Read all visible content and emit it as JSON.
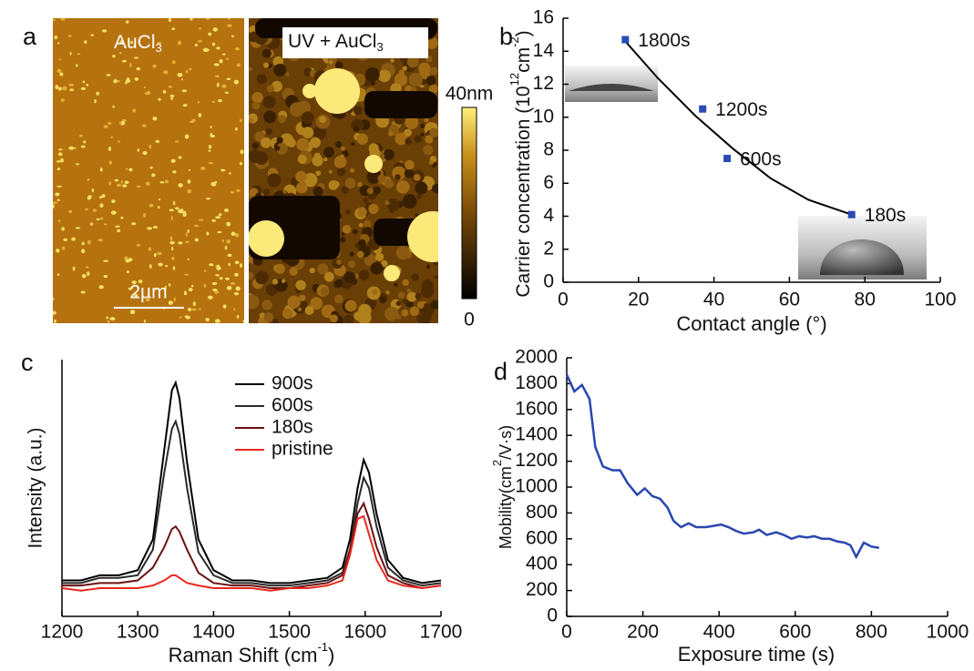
{
  "images": {
    "label": "a",
    "left_title": [
      "AuCl",
      "3"
    ],
    "right_title": [
      "UV + AuCl",
      "3"
    ],
    "scale_bar": "2µm",
    "colorbar": {
      "max_label": "40nm",
      "min_label": "0"
    }
  },
  "chart_data": [
    {
      "type": "scatter",
      "label": "b",
      "x": [
        16.5,
        37,
        43.5,
        76.5
      ],
      "values": [
        14.7,
        10.5,
        7.5,
        4.1
      ],
      "point_labels": [
        "1800s",
        "1200s",
        "600s",
        "180s"
      ],
      "color": "#2a4bb5",
      "fit": {
        "x": [
          16.5,
          25,
          35,
          45,
          55,
          65,
          76.5
        ],
        "values": [
          14.6,
          12.4,
          10.1,
          8.1,
          6.3,
          5.0,
          4.1
        ],
        "color": "#000000"
      },
      "xlim": [
        0,
        100
      ],
      "xticks": [
        0,
        20,
        40,
        60,
        80,
        100
      ],
      "ylim": [
        0,
        16
      ],
      "yticks": [
        0,
        2,
        4,
        6,
        8,
        10,
        12,
        14,
        16
      ],
      "xlabel": "Contact angle (°)",
      "ylabel": [
        "Carrier concentration (10",
        "12",
        "cm",
        "-2",
        ")"
      ]
    },
    {
      "type": "line",
      "label": "c",
      "x": [
        1200,
        1225,
        1250,
        1275,
        1300,
        1320,
        1335,
        1345,
        1350,
        1355,
        1365,
        1380,
        1400,
        1425,
        1450,
        1475,
        1500,
        1525,
        1550,
        1570,
        1580,
        1590,
        1598,
        1605,
        1615,
        1630,
        1650,
        1675,
        1700
      ],
      "series": [
        {
          "name": "900s",
          "color": "#000000",
          "values": [
            14,
            14,
            16,
            16,
            18,
            30,
            65,
            88,
            91,
            85,
            60,
            30,
            18,
            14,
            14,
            13,
            13,
            14,
            15,
            19,
            30,
            50,
            61,
            56,
            40,
            22,
            15,
            13,
            14
          ]
        },
        {
          "name": "600s",
          "color": "#2a2a2a",
          "values": [
            13,
            13,
            15,
            15,
            16,
            26,
            56,
            73,
            76,
            71,
            50,
            25,
            16,
            13,
            13,
            12,
            12,
            13,
            14,
            17,
            26,
            44,
            54,
            50,
            35,
            19,
            14,
            12,
            13
          ]
        },
        {
          "name": "180s",
          "color": "#6b1212",
          "values": [
            12,
            12,
            13,
            13,
            14,
            19,
            27,
            34,
            35,
            33,
            26,
            17,
            13,
            12,
            12,
            11,
            11,
            12,
            13,
            16,
            26,
            40,
            44,
            38,
            27,
            16,
            13,
            11,
            12
          ]
        },
        {
          "name": "pristine",
          "color": "#e8281e",
          "values": [
            11,
            10,
            11,
            11,
            11,
            12,
            14,
            16,
            16,
            15,
            13,
            12,
            11,
            11,
            11,
            10,
            11,
            11,
            12,
            14,
            24,
            38,
            39,
            32,
            22,
            14,
            12,
            11,
            12
          ]
        }
      ],
      "xlim": [
        1200,
        1700
      ],
      "xticks": [
        1200,
        1300,
        1400,
        1500,
        1600,
        1700
      ],
      "ylim": [
        0,
        100
      ],
      "xlabel": [
        "Raman Shift (cm",
        "-1",
        ")"
      ],
      "ylabel": "Intensity (a.u.)",
      "legend": "upper right"
    },
    {
      "type": "line",
      "label": "d",
      "x": [
        0,
        20,
        40,
        60,
        75,
        95,
        120,
        140,
        160,
        185,
        205,
        225,
        245,
        265,
        280,
        300,
        320,
        340,
        365,
        385,
        405,
        425,
        445,
        465,
        490,
        505,
        525,
        550,
        570,
        590,
        610,
        630,
        650,
        670,
        690,
        710,
        730,
        745,
        760,
        780,
        800,
        820
      ],
      "values": [
        1870,
        1740,
        1790,
        1680,
        1310,
        1160,
        1130,
        1130,
        1030,
        940,
        990,
        930,
        910,
        840,
        740,
        690,
        720,
        690,
        690,
        700,
        710,
        690,
        660,
        640,
        650,
        670,
        630,
        650,
        630,
        600,
        620,
        610,
        620,
        600,
        600,
        580,
        570,
        550,
        460,
        570,
        540,
        530
      ],
      "color": "#2a46b0",
      "xlim": [
        0,
        1000
      ],
      "xticks": [
        0,
        200,
        400,
        600,
        800,
        1000
      ],
      "ylim": [
        0,
        2000
      ],
      "yticks": [
        0,
        200,
        400,
        600,
        800,
        1000,
        1200,
        1400,
        1600,
        1800,
        2000
      ],
      "xlabel": "Exposure time (s)",
      "ylabel": [
        "Mobility(cm",
        "2",
        "/V·s)"
      ]
    }
  ]
}
